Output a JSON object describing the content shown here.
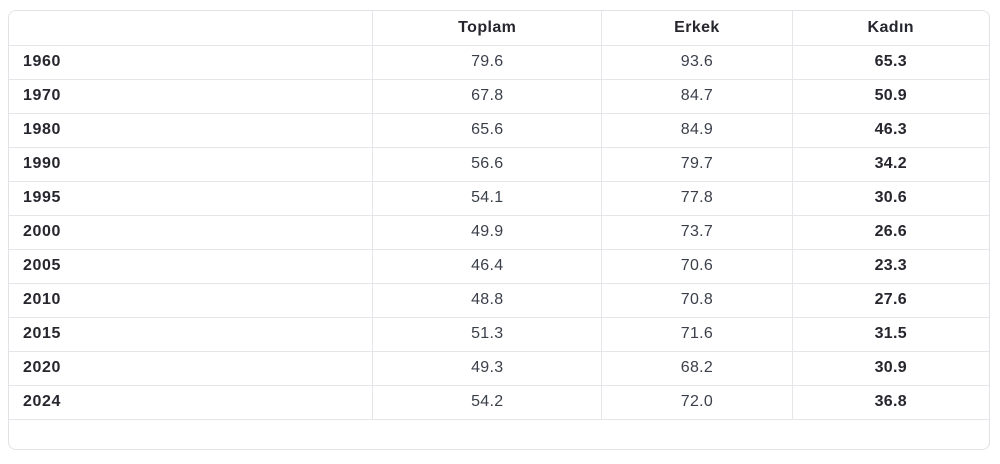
{
  "chart_data": {
    "type": "table",
    "title": "",
    "categories": [
      "1960",
      "1970",
      "1980",
      "1990",
      "1995",
      "2000",
      "2005",
      "2010",
      "2015",
      "2020",
      "2024"
    ],
    "series": [
      {
        "name": "Toplam",
        "values": [
          79.6,
          67.8,
          65.6,
          56.6,
          54.1,
          49.9,
          46.4,
          48.8,
          51.3,
          49.3,
          54.2
        ]
      },
      {
        "name": "Erkek",
        "values": [
          93.6,
          84.7,
          84.9,
          79.7,
          77.8,
          73.7,
          70.6,
          70.8,
          71.6,
          68.2,
          72.0
        ]
      },
      {
        "name": "Kadın",
        "values": [
          65.3,
          50.9,
          46.3,
          34.2,
          30.6,
          26.6,
          23.3,
          27.6,
          31.5,
          30.9,
          36.8
        ]
      }
    ],
    "layout_hints": {
      "grid": "full-borders",
      "first_column": "year",
      "bold_columns": [
        "year",
        "Kadın"
      ]
    }
  },
  "table": {
    "header": {
      "year": "",
      "toplam": "Toplam",
      "erkek": "Erkek",
      "kadin": "Kadın"
    },
    "rows": [
      {
        "year": "1960",
        "toplam": "79.6",
        "erkek": "93.6",
        "kadin": "65.3"
      },
      {
        "year": "1970",
        "toplam": "67.8",
        "erkek": "84.7",
        "kadin": "50.9"
      },
      {
        "year": "1980",
        "toplam": "65.6",
        "erkek": "84.9",
        "kadin": "46.3"
      },
      {
        "year": "1990",
        "toplam": "56.6",
        "erkek": "79.7",
        "kadin": "34.2"
      },
      {
        "year": "1995",
        "toplam": "54.1",
        "erkek": "77.8",
        "kadin": "30.6"
      },
      {
        "year": "2000",
        "toplam": "49.9",
        "erkek": "73.7",
        "kadin": "26.6"
      },
      {
        "year": "2005",
        "toplam": "46.4",
        "erkek": "70.6",
        "kadin": "23.3"
      },
      {
        "year": "2010",
        "toplam": "48.8",
        "erkek": "70.8",
        "kadin": "27.6"
      },
      {
        "year": "2015",
        "toplam": "51.3",
        "erkek": "71.6",
        "kadin": "31.5"
      },
      {
        "year": "2020",
        "toplam": "49.3",
        "erkek": "68.2",
        "kadin": "30.9"
      },
      {
        "year": "2024",
        "toplam": "54.2",
        "erkek": "72.0",
        "kadin": "36.8"
      }
    ]
  },
  "colors": {
    "background": "#ffffff",
    "border": "#e2e2e6",
    "text_bold": "#26262e",
    "text_value": "#3a3f4a"
  }
}
